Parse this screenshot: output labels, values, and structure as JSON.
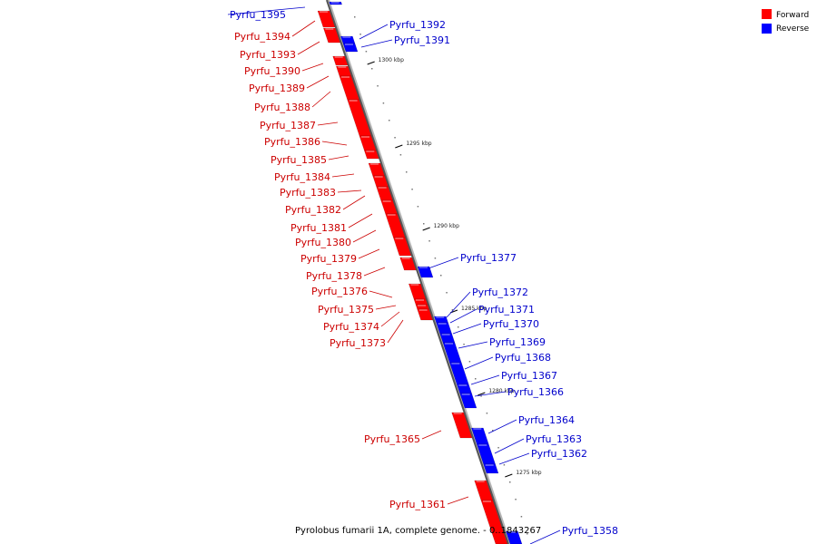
{
  "caption": "Pyrolobus fumarii 1A, complete genome. - 0..1843267",
  "legend": [
    {
      "label": "Forward",
      "color": "#ff0000"
    },
    {
      "label": "Reverse",
      "color": "#0000ff"
    }
  ],
  "ticks": [
    "1300 kbp",
    "1295 kbp",
    "1290 kbp",
    "1285 kbp",
    "1280 kbp",
    "1275 kbp"
  ],
  "genes": [
    {
      "name": "Pyrfu_1395",
      "strand": "reverse"
    },
    {
      "name": "Pyrfu_1394",
      "strand": "forward"
    },
    {
      "name": "Pyrfu_1393",
      "strand": "forward"
    },
    {
      "name": "Pyrfu_1392",
      "strand": "reverse"
    },
    {
      "name": "Pyrfu_1391",
      "strand": "reverse"
    },
    {
      "name": "Pyrfu_1390",
      "strand": "forward"
    },
    {
      "name": "Pyrfu_1389",
      "strand": "forward"
    },
    {
      "name": "Pyrfu_1388",
      "strand": "forward"
    },
    {
      "name": "Pyrfu_1387",
      "strand": "forward"
    },
    {
      "name": "Pyrfu_1386",
      "strand": "forward"
    },
    {
      "name": "Pyrfu_1385",
      "strand": "forward"
    },
    {
      "name": "Pyrfu_1384",
      "strand": "forward"
    },
    {
      "name": "Pyrfu_1383",
      "strand": "forward"
    },
    {
      "name": "Pyrfu_1382",
      "strand": "forward"
    },
    {
      "name": "Pyrfu_1381",
      "strand": "forward"
    },
    {
      "name": "Pyrfu_1380",
      "strand": "forward"
    },
    {
      "name": "Pyrfu_1379",
      "strand": "forward"
    },
    {
      "name": "Pyrfu_1378",
      "strand": "forward"
    },
    {
      "name": "Pyrfu_1377",
      "strand": "reverse"
    },
    {
      "name": "Pyrfu_1376",
      "strand": "forward"
    },
    {
      "name": "Pyrfu_1375",
      "strand": "forward"
    },
    {
      "name": "Pyrfu_1374",
      "strand": "forward"
    },
    {
      "name": "Pyrfu_1373",
      "strand": "forward"
    },
    {
      "name": "Pyrfu_1372",
      "strand": "reverse"
    },
    {
      "name": "Pyrfu_1371",
      "strand": "reverse"
    },
    {
      "name": "Pyrfu_1370",
      "strand": "reverse"
    },
    {
      "name": "Pyrfu_1369",
      "strand": "reverse"
    },
    {
      "name": "Pyrfu_1368",
      "strand": "reverse"
    },
    {
      "name": "Pyrfu_1367",
      "strand": "reverse"
    },
    {
      "name": "Pyrfu_1366",
      "strand": "reverse"
    },
    {
      "name": "Pyrfu_1365",
      "strand": "forward"
    },
    {
      "name": "Pyrfu_1364",
      "strand": "reverse"
    },
    {
      "name": "Pyrfu_1363",
      "strand": "reverse"
    },
    {
      "name": "Pyrfu_1362",
      "strand": "reverse"
    },
    {
      "name": "Pyrfu_1361",
      "strand": "forward"
    },
    {
      "name": "Pyrfu_1358",
      "strand": "reverse"
    }
  ]
}
